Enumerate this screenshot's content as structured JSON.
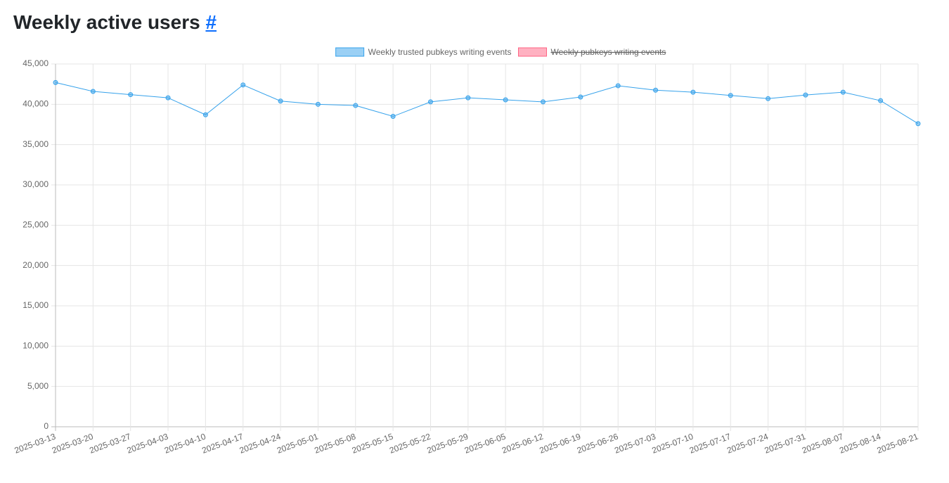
{
  "header": {
    "title": "Weekly active users",
    "link": "#"
  },
  "chart_data": {
    "type": "line",
    "categories": [
      "2025-03-13",
      "2025-03-20",
      "2025-03-27",
      "2025-04-03",
      "2025-04-10",
      "2025-04-17",
      "2025-04-24",
      "2025-05-01",
      "2025-05-08",
      "2025-05-15",
      "2025-05-22",
      "2025-05-29",
      "2025-06-05",
      "2025-06-12",
      "2025-06-19",
      "2025-06-26",
      "2025-07-03",
      "2025-07-10",
      "2025-07-17",
      "2025-07-24",
      "2025-07-31",
      "2025-08-07",
      "2025-08-14",
      "2025-08-21"
    ],
    "series": [
      {
        "name": "Weekly trusted pubkeys writing events",
        "color": "rgb(54, 162, 235)",
        "hidden": false,
        "values": [
          42700,
          41600,
          41200,
          40800,
          38700,
          42400,
          40400,
          40000,
          39850,
          38500,
          40300,
          40800,
          40550,
          40300,
          40900,
          42300,
          41750,
          41500,
          41100,
          40700,
          41150,
          41500,
          40450,
          37600
        ]
      },
      {
        "name": "Weekly pubkeys writing events",
        "color": "rgb(255, 99, 132)",
        "hidden": true,
        "values": [
          null,
          null,
          null,
          null,
          null,
          null,
          null,
          null,
          null,
          null,
          null,
          null,
          null,
          null,
          null,
          null,
          null,
          null,
          null,
          null,
          null,
          null,
          null,
          null
        ]
      }
    ],
    "ylim": [
      0,
      45000
    ],
    "yticks": [
      0,
      {
        "value": 5000,
        "label": "5,000"
      },
      {
        "value": 10000,
        "label": "10,000"
      },
      {
        "value": 15000,
        "label": "15,000"
      },
      {
        "value": 20000,
        "label": "20,000"
      },
      {
        "value": 25000,
        "label": "25,000"
      },
      {
        "value": 30000,
        "label": "30,000"
      },
      {
        "value": 35000,
        "label": "35,000"
      },
      {
        "value": 40000,
        "label": "40,000"
      },
      {
        "value": 45000,
        "label": "45,000"
      }
    ],
    "grid": true,
    "legend": "top"
  }
}
